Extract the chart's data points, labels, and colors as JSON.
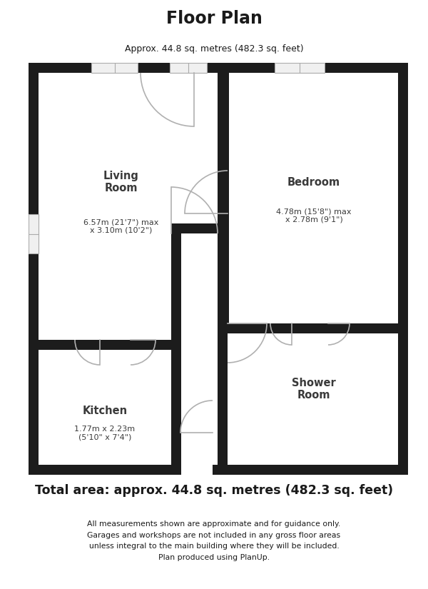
{
  "title": "Floor Plan",
  "subtitle": "Approx. 44.8 sq. metres (482.3 sq. feet)",
  "total_area": "Total area: approx. 44.8 sq. metres (482.3 sq. feet)",
  "disclaimer": "All measurements shown are approximate and for guidance only.\nGarages and workshops are not included in any gross floor areas\nunless integral to the main building where they will be included.\nPlan produced using PlanUp.",
  "bg_color": "#ffffff",
  "wall_color": "#1c1c1c",
  "win_color": "#c8c8c8",
  "door_color": "#b0b0b0",
  "text_color": "#3a3a3a",
  "title_color": "#1a1a1a"
}
